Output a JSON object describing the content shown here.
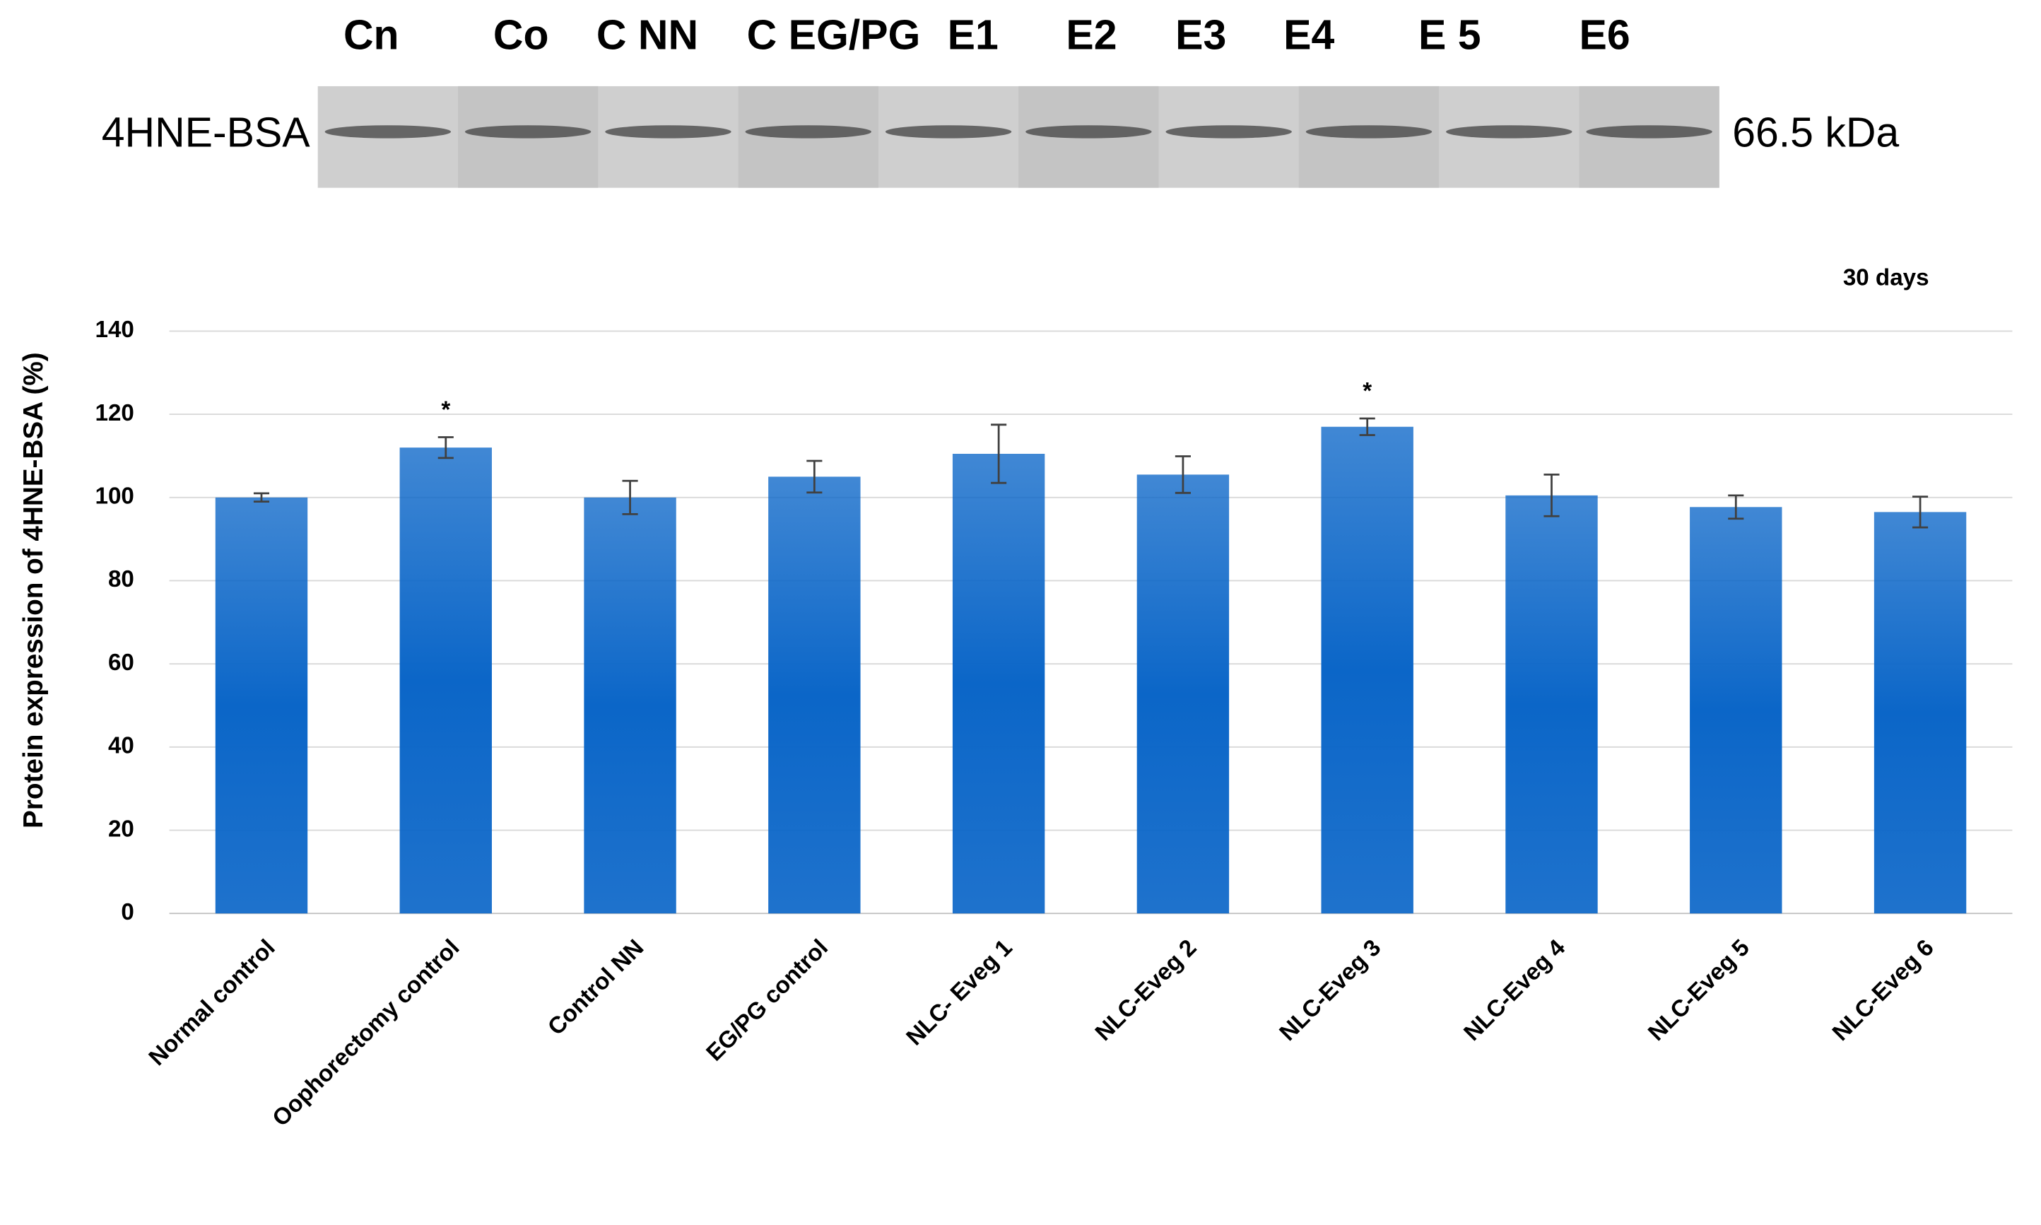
{
  "blot": {
    "label": "4HNE-BSA",
    "marker": "66.5 kDa",
    "lanes": [
      "Cn",
      "Co",
      "C NN",
      "C EG/PG",
      "E1",
      "E2",
      "E3",
      "E4",
      "E 5",
      "E6"
    ]
  },
  "chart_data": {
    "type": "bar",
    "subtitle": "30 days",
    "y_label": "Protein expression of 4HNE-BSA (%)",
    "categories": [
      "Normal control",
      "Oophorectomy control",
      "Control NN",
      "EG/PG control",
      "NLC- Eveg 1",
      "NLC-Eveg 2",
      "NLC-Eveg 3",
      "NLC-Eveg 4",
      "NLC-Eveg 5",
      "NLC-Eveg 6"
    ],
    "values": [
      100,
      112,
      100,
      105,
      110.5,
      105.5,
      117,
      100.5,
      97.7,
      96.5
    ],
    "errors": [
      1,
      2.5,
      4,
      3.8,
      7,
      4.4,
      2,
      5,
      2.8,
      3.7
    ],
    "annotations": [
      {
        "text": "*",
        "category": "Oophorectomy control"
      },
      {
        "text": "*",
        "category": "NLC-Eveg 3"
      }
    ],
    "color": "#0b66c8",
    "ylim": [
      0,
      140
    ],
    "yticks": [
      0,
      20,
      40,
      60,
      80,
      100,
      120,
      140
    ],
    "grid": true
  }
}
